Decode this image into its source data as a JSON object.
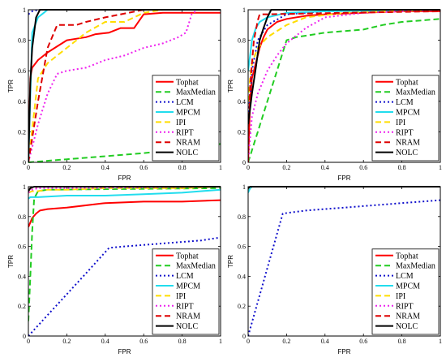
{
  "chart_data": [
    {
      "type": "line",
      "xlabel": "FPR",
      "ylabel": "TPR",
      "xlim": [
        0,
        1
      ],
      "ylim": [
        0,
        1
      ],
      "xticks": [
        "0",
        "0.2",
        "0.4",
        "0.6",
        "0.8",
        "1"
      ],
      "yticks": [
        "0",
        "0.2",
        "0.4",
        "0.6",
        "0.8",
        "1"
      ],
      "legend_position": "bottom-right",
      "series": [
        {
          "name": "Tophat",
          "color": "#ff0000",
          "dash": "solid",
          "x": [
            0,
            0.01,
            0.02,
            0.05,
            0.1,
            0.15,
            0.2,
            0.25,
            0.3,
            0.35,
            0.42,
            0.48,
            0.55,
            0.6,
            0.7,
            0.8,
            0.85,
            1.0
          ],
          "y": [
            0,
            0.55,
            0.62,
            0.67,
            0.72,
            0.76,
            0.8,
            0.81,
            0.82,
            0.84,
            0.85,
            0.88,
            0.88,
            0.97,
            0.98,
            0.98,
            0.98,
            0.98
          ]
        },
        {
          "name": "MaxMedian",
          "color": "#22cc22",
          "dash": "dashed",
          "x": [
            0,
            0.2,
            0.4,
            0.6,
            0.8,
            1.0
          ],
          "y": [
            0,
            0.02,
            0.04,
            0.06,
            0.09,
            0.12
          ]
        },
        {
          "name": "LCM",
          "color": "#1010cc",
          "dash": "dotted",
          "x": [
            0,
            0.02,
            0.05,
            0.1,
            1.0
          ],
          "y": [
            0.97,
            0.99,
            1.0,
            1.0,
            1.0
          ]
        },
        {
          "name": "MPCM",
          "color": "#22ddee",
          "dash": "solid",
          "x": [
            0,
            0.02,
            0.05,
            0.08,
            0.1,
            0.2,
            1.0
          ],
          "y": [
            0,
            0.85,
            0.95,
            0.98,
            1.0,
            1.0,
            1.0
          ]
        },
        {
          "name": "IPI",
          "color": "#ffdd00",
          "dash": "dashed",
          "x": [
            0,
            0.05,
            0.1,
            0.15,
            0.2,
            0.25,
            0.3,
            0.4,
            0.5,
            0.55,
            0.6,
            0.7,
            1.0
          ],
          "y": [
            0,
            0.55,
            0.65,
            0.7,
            0.75,
            0.8,
            0.85,
            0.92,
            0.92,
            0.95,
            0.98,
            1.0,
            1.0
          ]
        },
        {
          "name": "RIPT",
          "color": "#ee22ee",
          "dash": "dotted",
          "x": [
            0,
            0.05,
            0.1,
            0.15,
            0.2,
            0.3,
            0.4,
            0.5,
            0.6,
            0.7,
            0.78,
            0.82,
            0.85,
            0.88,
            1.0
          ],
          "y": [
            0,
            0.25,
            0.45,
            0.58,
            0.6,
            0.62,
            0.67,
            0.7,
            0.75,
            0.78,
            0.82,
            0.85,
            0.97,
            1.0,
            1.0
          ]
        },
        {
          "name": "NRAM",
          "color": "#dd0000",
          "dash": "dashed",
          "x": [
            0,
            0.05,
            0.1,
            0.15,
            0.2,
            0.25,
            0.3,
            0.4,
            0.6,
            1.0
          ],
          "y": [
            0,
            0.4,
            0.75,
            0.9,
            0.9,
            0.9,
            0.92,
            0.95,
            1.0,
            1.0
          ]
        },
        {
          "name": "NOLC",
          "color": "#000000",
          "dash": "solid",
          "x": [
            0,
            0.01,
            0.02,
            0.04,
            0.06,
            0.1,
            1.0
          ],
          "y": [
            0,
            0.52,
            0.75,
            0.95,
            1.0,
            1.0,
            1.0
          ]
        }
      ]
    },
    {
      "type": "line",
      "xlabel": "FPR",
      "ylabel": "TPR",
      "xlim": [
        0,
        1
      ],
      "ylim": [
        0,
        1
      ],
      "xticks": [
        "0",
        "0.2",
        "0.4",
        "0.6",
        "0.8",
        "1"
      ],
      "yticks": [
        "0",
        "0.2",
        "0.4",
        "0.6",
        "0.8",
        "1"
      ],
      "legend_position": "bottom-right",
      "series": [
        {
          "name": "Tophat",
          "color": "#ff0000",
          "dash": "solid",
          "x": [
            0,
            0.01,
            0.02,
            0.04,
            0.06,
            0.08,
            0.1,
            0.15,
            0.2,
            0.3,
            0.4,
            0.6,
            0.8,
            1.0
          ],
          "y": [
            0,
            0.4,
            0.55,
            0.65,
            0.75,
            0.82,
            0.87,
            0.92,
            0.94,
            0.96,
            0.97,
            0.98,
            0.99,
            0.99
          ]
        },
        {
          "name": "MaxMedian",
          "color": "#22cc22",
          "dash": "dashed",
          "x": [
            0,
            0.05,
            0.1,
            0.15,
            0.2,
            0.25,
            0.3,
            0.4,
            0.5,
            0.6,
            0.7,
            0.8,
            0.9,
            1.0
          ],
          "y": [
            0,
            0.2,
            0.4,
            0.6,
            0.8,
            0.82,
            0.83,
            0.85,
            0.86,
            0.87,
            0.9,
            0.92,
            0.93,
            0.94
          ]
        },
        {
          "name": "LCM",
          "color": "#1010cc",
          "dash": "dotted",
          "x": [
            0,
            0.01,
            0.02,
            0.05,
            0.1,
            0.2,
            0.4,
            1.0
          ],
          "y": [
            0.25,
            0.45,
            0.6,
            0.8,
            0.9,
            0.97,
            0.99,
            1.0
          ]
        },
        {
          "name": "MPCM",
          "color": "#22ddee",
          "dash": "solid",
          "x": [
            0,
            0.01,
            0.02,
            0.04,
            0.06,
            0.1,
            0.2,
            0.4,
            1.0
          ],
          "y": [
            0.6,
            0.7,
            0.8,
            0.88,
            0.92,
            0.95,
            0.98,
            0.99,
            1.0
          ]
        },
        {
          "name": "IPI",
          "color": "#ffdd00",
          "dash": "dashed",
          "x": [
            0,
            0.01,
            0.02,
            0.05,
            0.1,
            0.2,
            0.3,
            0.5,
            1.0
          ],
          "y": [
            0.4,
            0.55,
            0.65,
            0.75,
            0.82,
            0.9,
            0.95,
            0.98,
            1.0
          ]
        },
        {
          "name": "RIPT",
          "color": "#ee22ee",
          "dash": "dotted",
          "x": [
            0,
            0.02,
            0.05,
            0.1,
            0.15,
            0.2,
            0.3,
            0.4,
            0.6,
            1.0
          ],
          "y": [
            0,
            0.3,
            0.45,
            0.6,
            0.7,
            0.78,
            0.88,
            0.95,
            0.98,
            1.0
          ]
        },
        {
          "name": "NRAM",
          "color": "#dd0000",
          "dash": "dashed",
          "x": [
            0,
            0.01,
            0.03,
            0.05,
            0.06,
            0.1,
            0.5,
            1.0
          ],
          "y": [
            0,
            0.5,
            0.8,
            0.93,
            0.97,
            0.97,
            0.98,
            0.99
          ]
        },
        {
          "name": "NOLC",
          "color": "#000000",
          "dash": "solid",
          "x": [
            0,
            0.01,
            0.02,
            0.04,
            0.06,
            0.08,
            0.1,
            0.12,
            0.2,
            1.0
          ],
          "y": [
            0.25,
            0.35,
            0.45,
            0.62,
            0.8,
            0.88,
            0.95,
            1.0,
            1.0,
            1.0
          ]
        }
      ]
    },
    {
      "type": "line",
      "xlabel": "FPR",
      "ylabel": "TPR",
      "xlim": [
        0,
        1
      ],
      "ylim": [
        0,
        1
      ],
      "xticks": [
        "0",
        "0.2",
        "0.4",
        "0.6",
        "0.8",
        "1"
      ],
      "yticks": [
        "0",
        "0.2",
        "0.4",
        "0.6",
        "0.8",
        "1"
      ],
      "legend_position": "bottom-right",
      "series": [
        {
          "name": "Tophat",
          "color": "#ff0000",
          "dash": "solid",
          "x": [
            0,
            0.01,
            0.02,
            0.04,
            0.06,
            0.1,
            0.2,
            0.4,
            0.6,
            0.8,
            1.0
          ],
          "y": [
            0.73,
            0.76,
            0.79,
            0.82,
            0.84,
            0.85,
            0.86,
            0.89,
            0.9,
            0.9,
            0.91
          ]
        },
        {
          "name": "MaxMedian",
          "color": "#22cc22",
          "dash": "dashed",
          "x": [
            0,
            0.01,
            0.02,
            0.03,
            0.05,
            0.1,
            1.0
          ],
          "y": [
            0.1,
            0.4,
            0.7,
            0.92,
            0.97,
            0.98,
            0.99
          ]
        },
        {
          "name": "LCM",
          "color": "#1010cc",
          "dash": "dotted",
          "x": [
            0,
            0.1,
            0.2,
            0.3,
            0.42,
            0.5,
            0.6,
            0.7,
            0.8,
            0.9,
            1.0
          ],
          "y": [
            0,
            0.14,
            0.28,
            0.42,
            0.59,
            0.6,
            0.61,
            0.62,
            0.63,
            0.64,
            0.66
          ]
        },
        {
          "name": "MPCM",
          "color": "#22ddee",
          "dash": "solid",
          "x": [
            0,
            0.01,
            0.05,
            0.2,
            0.4,
            0.6,
            0.8,
            1.0
          ],
          "y": [
            0.92,
            0.93,
            0.93,
            0.94,
            0.94,
            0.95,
            0.96,
            0.98
          ]
        },
        {
          "name": "IPI",
          "color": "#ffdd00",
          "dash": "dashed",
          "x": [
            0,
            0.02,
            0.05,
            0.1,
            0.2,
            0.4,
            0.6,
            0.8,
            1.0
          ],
          "y": [
            0.96,
            0.97,
            0.97,
            0.98,
            0.98,
            0.99,
            0.99,
            0.99,
            1.0
          ]
        },
        {
          "name": "RIPT",
          "color": "#ee22ee",
          "dash": "dotted",
          "x": [
            0,
            0.02,
            0.05,
            0.2,
            1.0
          ],
          "y": [
            0.96,
            0.98,
            0.99,
            0.99,
            1.0
          ]
        },
        {
          "name": "NRAM",
          "color": "#dd0000",
          "dash": "dashed",
          "x": [
            0,
            0.01,
            0.05,
            1.0
          ],
          "y": [
            0.97,
            0.99,
            1.0,
            1.0
          ]
        },
        {
          "name": "NOLC",
          "color": "#000000",
          "dash": "solid",
          "x": [
            0,
            0.01,
            0.03,
            1.0
          ],
          "y": [
            0.97,
            0.99,
            1.0,
            1.0
          ]
        }
      ]
    },
    {
      "type": "line",
      "xlabel": "FPR",
      "ylabel": "TPR",
      "xlim": [
        0,
        1
      ],
      "ylim": [
        0,
        1
      ],
      "xticks": [
        "0",
        "0.2",
        "0.4",
        "0.6",
        "0.8",
        "1"
      ],
      "yticks": [
        "0",
        "0.2",
        "0.4",
        "0.6",
        "0.8",
        "1"
      ],
      "legend_position": "bottom-right",
      "series": [
        {
          "name": "Tophat",
          "color": "#ff0000",
          "dash": "solid",
          "x": [
            0,
            0.01,
            0.02,
            1.0
          ],
          "y": [
            0.98,
            0.99,
            1.0,
            1.0
          ]
        },
        {
          "name": "MaxMedian",
          "color": "#22cc22",
          "dash": "dashed",
          "x": [
            0,
            0.01,
            0.02,
            1.0
          ],
          "y": [
            0.97,
            0.99,
            1.0,
            1.0
          ]
        },
        {
          "name": "LCM",
          "color": "#1010cc",
          "dash": "dotted",
          "x": [
            0,
            0.18,
            0.3,
            0.4,
            0.5,
            0.6,
            0.7,
            0.8,
            0.9,
            1.0
          ],
          "y": [
            0,
            0.82,
            0.84,
            0.85,
            0.86,
            0.87,
            0.88,
            0.89,
            0.9,
            0.91
          ]
        },
        {
          "name": "MPCM",
          "color": "#22ddee",
          "dash": "solid",
          "x": [
            0,
            0.01,
            0.02,
            1.0
          ],
          "y": [
            0.96,
            0.99,
            1.0,
            1.0
          ]
        },
        {
          "name": "IPI",
          "color": "#ffdd00",
          "dash": "dashed",
          "x": [
            0,
            0.01,
            1.0
          ],
          "y": [
            0.99,
            1.0,
            1.0
          ]
        },
        {
          "name": "RIPT",
          "color": "#ee22ee",
          "dash": "dotted",
          "x": [
            0,
            0.01,
            1.0
          ],
          "y": [
            0.99,
            1.0,
            1.0
          ]
        },
        {
          "name": "NRAM",
          "color": "#dd0000",
          "dash": "dashed",
          "x": [
            0,
            0.01,
            1.0
          ],
          "y": [
            0.99,
            1.0,
            1.0
          ]
        },
        {
          "name": "NOLC",
          "color": "#000000",
          "dash": "solid",
          "x": [
            0,
            0.01,
            1.0
          ],
          "y": [
            0.99,
            1.0,
            1.0
          ]
        }
      ]
    }
  ]
}
